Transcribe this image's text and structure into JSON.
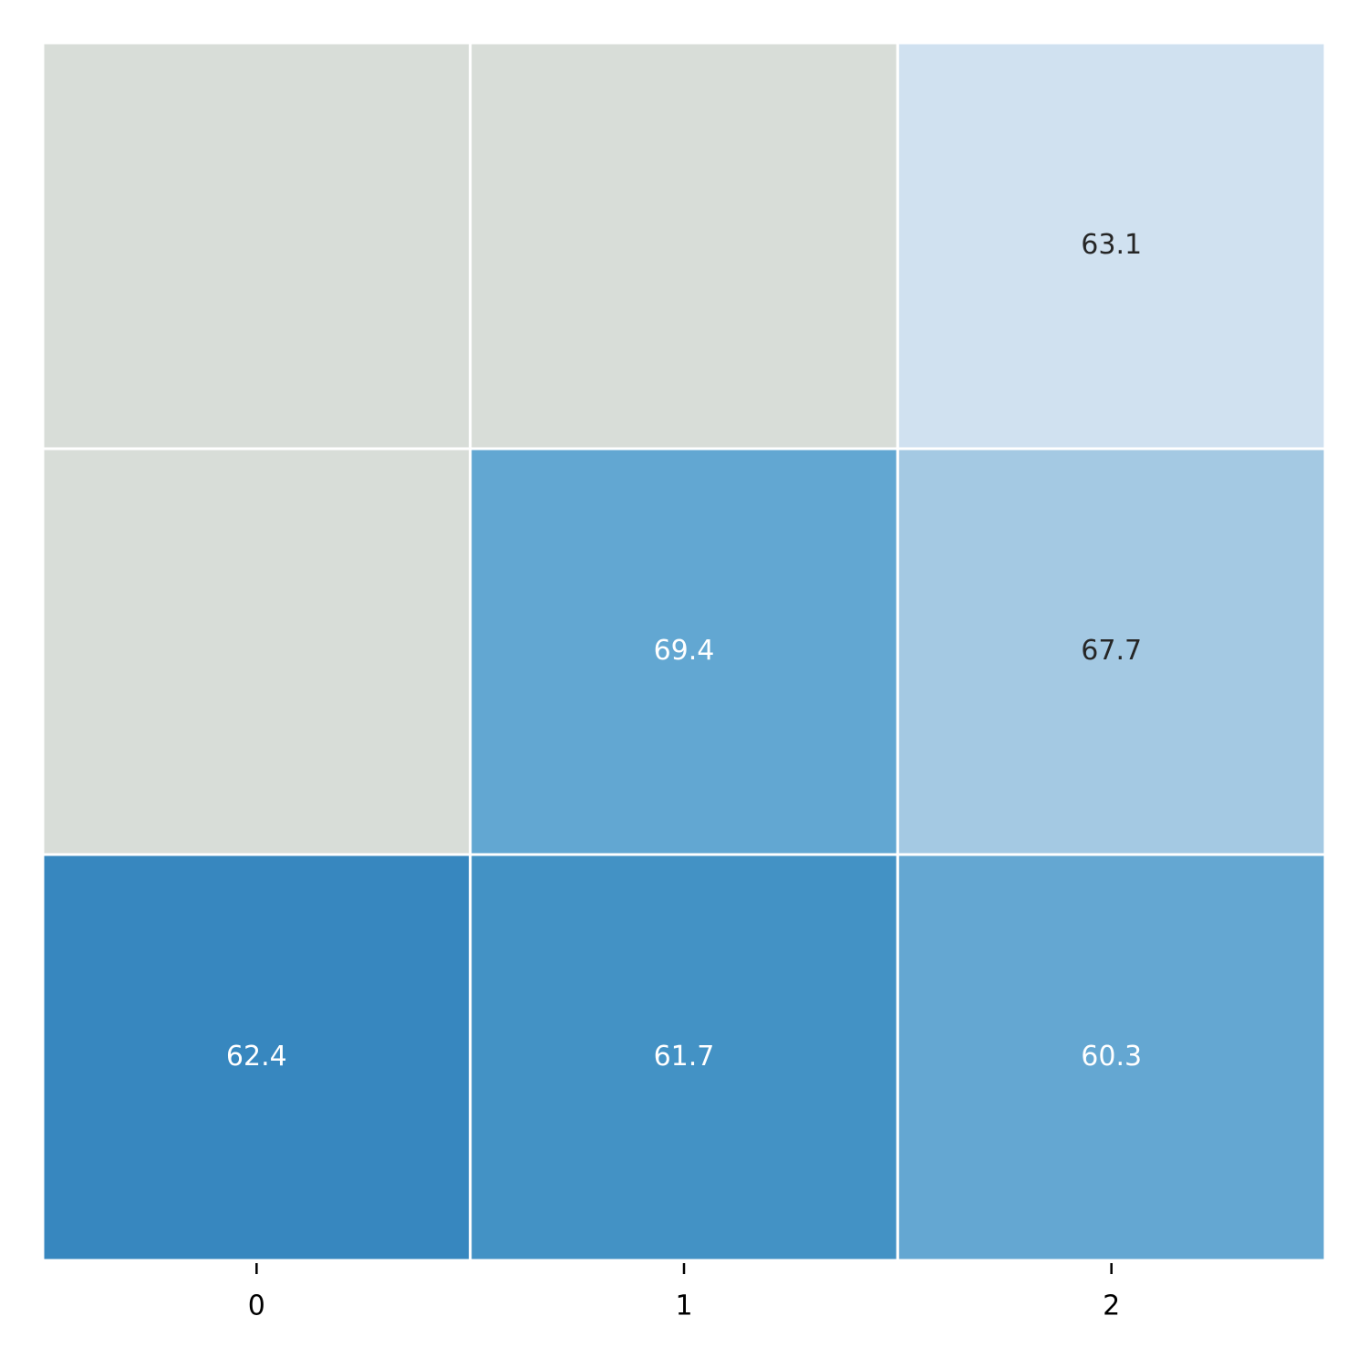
{
  "chart_data": {
    "type": "heatmap",
    "categories": [
      "0",
      "1",
      "2"
    ],
    "values": [
      [
        null,
        null,
        63.1
      ],
      [
        null,
        69.4,
        67.7
      ],
      [
        62.4,
        61.7,
        60.3
      ]
    ],
    "colors": [
      [
        "#d8ddd8",
        "#d8ddd8",
        "#d0e1f0"
      ],
      [
        "#d8ddd8",
        "#62a7d2",
        "#a4c9e3"
      ],
      [
        "#3787bf",
        "#4392c5",
        "#64a7d2"
      ]
    ]
  }
}
